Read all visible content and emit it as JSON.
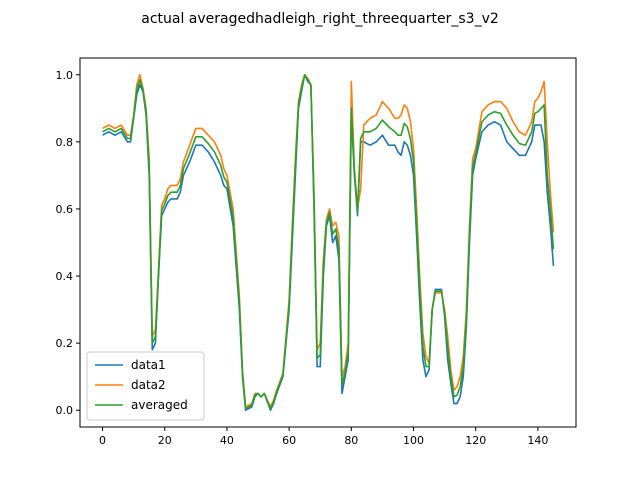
{
  "chart_data": {
    "type": "line",
    "title": "actual averagedhadleigh_right_threequarter_s3_v2",
    "xlabel": "",
    "ylabel": "",
    "xlim": [
      -7.25,
      152.25
    ],
    "ylim": [
      -0.05,
      1.05
    ],
    "xticks": [
      0,
      20,
      40,
      60,
      80,
      100,
      120,
      140
    ],
    "yticks": [
      0.0,
      0.2,
      0.4,
      0.6,
      0.8,
      1.0
    ],
    "xtick_labels": [
      "0",
      "20",
      "40",
      "60",
      "80",
      "100",
      "120",
      "140"
    ],
    "ytick_labels": [
      "0.0",
      "0.2",
      "0.4",
      "0.6",
      "0.8",
      "1.0"
    ],
    "grid": false,
    "legend_position": "lower-left",
    "series": [
      {
        "name": "data1",
        "color": "#1f77b4",
        "x": [
          0,
          2,
          4,
          6,
          8,
          9,
          10,
          11,
          12,
          13,
          14,
          15,
          16,
          17,
          18,
          19,
          20,
          21,
          22,
          24,
          25,
          26,
          28,
          30,
          32,
          34,
          36,
          38,
          39,
          40,
          42,
          44,
          45,
          46,
          48,
          49,
          50,
          51,
          52,
          54,
          55,
          56,
          58,
          60,
          61,
          62,
          63,
          64,
          65,
          66,
          67,
          68,
          69,
          70,
          71,
          72,
          73,
          74,
          75,
          76,
          77,
          78,
          79,
          80,
          81,
          82,
          83,
          84,
          86,
          88,
          90,
          92,
          94,
          95,
          96,
          97,
          98,
          99,
          100,
          101,
          102,
          103,
          104,
          105,
          106,
          107,
          108,
          109,
          110,
          111,
          112,
          113,
          114,
          115,
          116,
          117,
          118,
          119,
          120,
          122,
          124,
          126,
          128,
          130,
          132,
          134,
          136,
          138,
          139,
          140,
          141,
          142,
          143,
          144,
          145
        ],
        "values": [
          0.82,
          0.83,
          0.82,
          0.83,
          0.8,
          0.8,
          0.87,
          0.94,
          0.97,
          0.95,
          0.88,
          0.7,
          0.18,
          0.2,
          0.4,
          0.58,
          0.6,
          0.62,
          0.63,
          0.63,
          0.65,
          0.7,
          0.74,
          0.79,
          0.79,
          0.77,
          0.74,
          0.7,
          0.67,
          0.66,
          0.55,
          0.3,
          0.1,
          0.0,
          0.01,
          0.04,
          0.05,
          0.04,
          0.05,
          0.0,
          0.02,
          0.05,
          0.1,
          0.3,
          0.5,
          0.7,
          0.9,
          0.95,
          1.0,
          0.98,
          0.97,
          0.6,
          0.13,
          0.13,
          0.4,
          0.55,
          0.58,
          0.5,
          0.52,
          0.45,
          0.05,
          0.1,
          0.15,
          0.88,
          0.7,
          0.58,
          0.8,
          0.8,
          0.79,
          0.8,
          0.82,
          0.79,
          0.79,
          0.77,
          0.76,
          0.8,
          0.79,
          0.76,
          0.7,
          0.52,
          0.32,
          0.15,
          0.1,
          0.12,
          0.3,
          0.36,
          0.36,
          0.36,
          0.28,
          0.15,
          0.08,
          0.02,
          0.02,
          0.04,
          0.1,
          0.25,
          0.5,
          0.7,
          0.75,
          0.83,
          0.85,
          0.86,
          0.85,
          0.8,
          0.78,
          0.76,
          0.76,
          0.8,
          0.85,
          0.85,
          0.85,
          0.8,
          0.65,
          0.55,
          0.43
        ]
      },
      {
        "name": "data2",
        "color": "#ff7f0e",
        "x": [
          0,
          2,
          4,
          6,
          8,
          9,
          10,
          11,
          12,
          13,
          14,
          15,
          16,
          17,
          18,
          19,
          20,
          21,
          22,
          24,
          25,
          26,
          28,
          30,
          32,
          34,
          36,
          38,
          39,
          40,
          42,
          44,
          45,
          46,
          48,
          49,
          50,
          51,
          52,
          54,
          55,
          56,
          58,
          60,
          61,
          62,
          63,
          64,
          65,
          66,
          67,
          68,
          69,
          70,
          71,
          72,
          73,
          74,
          75,
          76,
          77,
          78,
          79,
          80,
          81,
          82,
          83,
          84,
          86,
          88,
          90,
          92,
          94,
          95,
          96,
          97,
          98,
          99,
          100,
          101,
          102,
          103,
          104,
          105,
          106,
          107,
          108,
          109,
          110,
          111,
          112,
          113,
          114,
          115,
          116,
          117,
          118,
          119,
          120,
          122,
          124,
          126,
          128,
          130,
          132,
          134,
          136,
          138,
          139,
          140,
          141,
          142,
          143,
          144,
          145
        ],
        "values": [
          0.84,
          0.85,
          0.84,
          0.85,
          0.82,
          0.82,
          0.88,
          0.97,
          1.0,
          0.96,
          0.9,
          0.75,
          0.22,
          0.24,
          0.42,
          0.61,
          0.63,
          0.66,
          0.67,
          0.67,
          0.69,
          0.74,
          0.79,
          0.84,
          0.84,
          0.82,
          0.8,
          0.76,
          0.72,
          0.7,
          0.6,
          0.34,
          0.12,
          0.01,
          0.02,
          0.05,
          0.05,
          0.04,
          0.05,
          0.01,
          0.03,
          0.06,
          0.11,
          0.33,
          0.55,
          0.75,
          0.92,
          0.97,
          1.0,
          0.99,
          0.97,
          0.65,
          0.18,
          0.2,
          0.45,
          0.57,
          0.6,
          0.55,
          0.56,
          0.52,
          0.1,
          0.13,
          0.2,
          0.98,
          0.72,
          0.6,
          0.66,
          0.85,
          0.87,
          0.88,
          0.92,
          0.9,
          0.87,
          0.87,
          0.88,
          0.91,
          0.9,
          0.86,
          0.78,
          0.6,
          0.4,
          0.23,
          0.16,
          0.14,
          0.3,
          0.35,
          0.35,
          0.35,
          0.3,
          0.22,
          0.12,
          0.06,
          0.07,
          0.1,
          0.16,
          0.3,
          0.55,
          0.75,
          0.78,
          0.89,
          0.91,
          0.92,
          0.92,
          0.9,
          0.86,
          0.83,
          0.82,
          0.86,
          0.92,
          0.93,
          0.95,
          0.98,
          0.8,
          0.65,
          0.53
        ]
      },
      {
        "name": "averaged",
        "color": "#2ca02c",
        "x": [
          0,
          2,
          4,
          6,
          8,
          9,
          10,
          11,
          12,
          13,
          14,
          15,
          16,
          17,
          18,
          19,
          20,
          21,
          22,
          24,
          25,
          26,
          28,
          30,
          32,
          34,
          36,
          38,
          39,
          40,
          42,
          44,
          45,
          46,
          48,
          49,
          50,
          51,
          52,
          54,
          55,
          56,
          58,
          60,
          61,
          62,
          63,
          64,
          65,
          66,
          67,
          68,
          69,
          70,
          71,
          72,
          73,
          74,
          75,
          76,
          77,
          78,
          79,
          80,
          81,
          82,
          83,
          84,
          86,
          88,
          90,
          92,
          94,
          95,
          96,
          97,
          98,
          99,
          100,
          101,
          102,
          103,
          104,
          105,
          106,
          107,
          108,
          109,
          110,
          111,
          112,
          113,
          114,
          115,
          116,
          117,
          118,
          119,
          120,
          122,
          124,
          126,
          128,
          130,
          132,
          134,
          136,
          138,
          139,
          140,
          141,
          142,
          143,
          144,
          145
        ],
        "values": [
          0.83,
          0.84,
          0.83,
          0.84,
          0.81,
          0.81,
          0.875,
          0.955,
          0.985,
          0.955,
          0.89,
          0.725,
          0.2,
          0.22,
          0.41,
          0.595,
          0.615,
          0.64,
          0.65,
          0.65,
          0.67,
          0.72,
          0.765,
          0.815,
          0.815,
          0.795,
          0.77,
          0.73,
          0.695,
          0.68,
          0.575,
          0.32,
          0.11,
          0.005,
          0.015,
          0.045,
          0.05,
          0.04,
          0.05,
          0.005,
          0.025,
          0.055,
          0.105,
          0.315,
          0.525,
          0.725,
          0.91,
          0.96,
          1.0,
          0.985,
          0.97,
          0.625,
          0.155,
          0.165,
          0.425,
          0.56,
          0.59,
          0.525,
          0.54,
          0.485,
          0.075,
          0.115,
          0.175,
          0.9,
          0.71,
          0.59,
          0.81,
          0.83,
          0.83,
          0.84,
          0.865,
          0.845,
          0.83,
          0.82,
          0.82,
          0.855,
          0.845,
          0.81,
          0.74,
          0.56,
          0.36,
          0.19,
          0.13,
          0.13,
          0.3,
          0.355,
          0.355,
          0.355,
          0.29,
          0.185,
          0.1,
          0.04,
          0.045,
          0.07,
          0.13,
          0.275,
          0.525,
          0.725,
          0.765,
          0.86,
          0.88,
          0.89,
          0.885,
          0.85,
          0.82,
          0.795,
          0.79,
          0.83,
          0.885,
          0.89,
          0.9,
          0.91,
          0.7,
          0.6,
          0.48
        ]
      }
    ]
  }
}
